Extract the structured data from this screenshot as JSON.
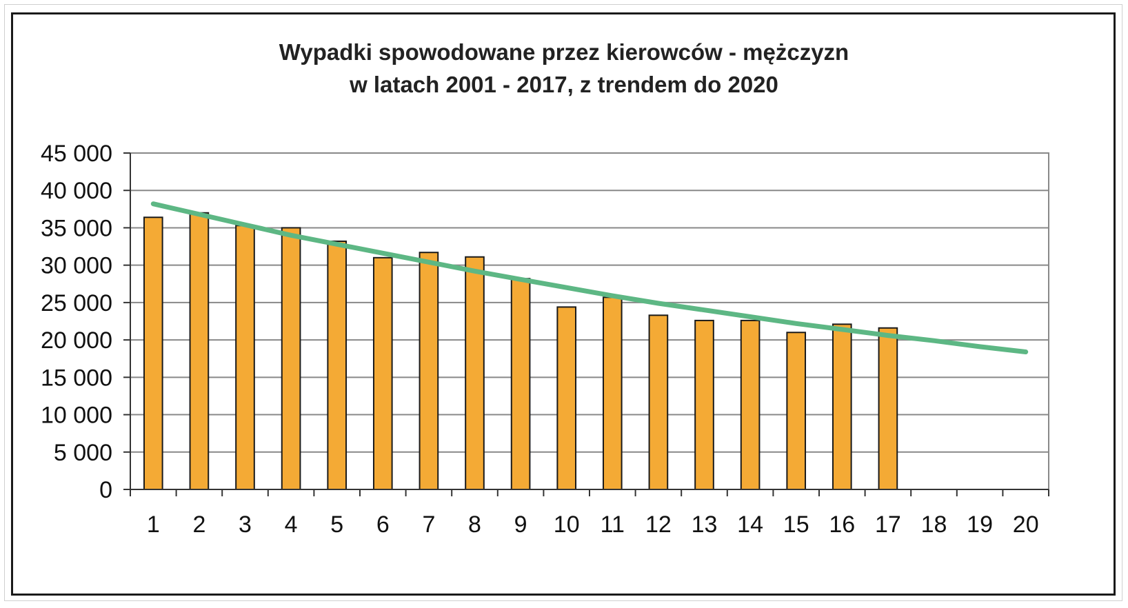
{
  "chart_data": {
    "type": "bar",
    "title": "Wypadki spowodowane przez kierowców - mężczyzn",
    "subtitle": "w latach 2001 - 2017, z trendem do 2020",
    "xlabel": "",
    "ylabel": "",
    "categories": [
      "1",
      "2",
      "3",
      "4",
      "5",
      "6",
      "7",
      "8",
      "9",
      "10",
      "11",
      "12",
      "13",
      "14",
      "15",
      "16",
      "17",
      "18",
      "19",
      "20"
    ],
    "series": [
      {
        "type": "bar",
        "values": [
          36400,
          37000,
          35300,
          35000,
          33200,
          31000,
          31700,
          31100,
          28200,
          24400,
          25700,
          23300,
          22600,
          22600,
          21000,
          22100,
          21600,
          null,
          null,
          null
        ]
      },
      {
        "type": "line",
        "values": [
          38200,
          36800,
          35400,
          34000,
          32800,
          31600,
          30400,
          29200,
          28100,
          27000,
          25900,
          24900,
          24000,
          23100,
          22200,
          21400,
          20600,
          19900,
          19100,
          18400
        ]
      }
    ],
    "ylim": [
      0,
      45000
    ],
    "yticks": [
      0,
      5000,
      10000,
      15000,
      20000,
      25000,
      30000,
      35000,
      40000,
      45000
    ],
    "ytick_labels": [
      "0",
      "5 000",
      "10 000",
      "15 000",
      "20 000",
      "25 000",
      "30 000",
      "35 000",
      "40 000",
      "45 000"
    ],
    "grid": true,
    "legend": "none",
    "colors": {
      "bar_fill": "#F4AA35",
      "bar_stroke": "#1a1a1a",
      "trend_line": "#5DB784",
      "grid": "#888888",
      "frame": "#1a1a1a"
    }
  }
}
